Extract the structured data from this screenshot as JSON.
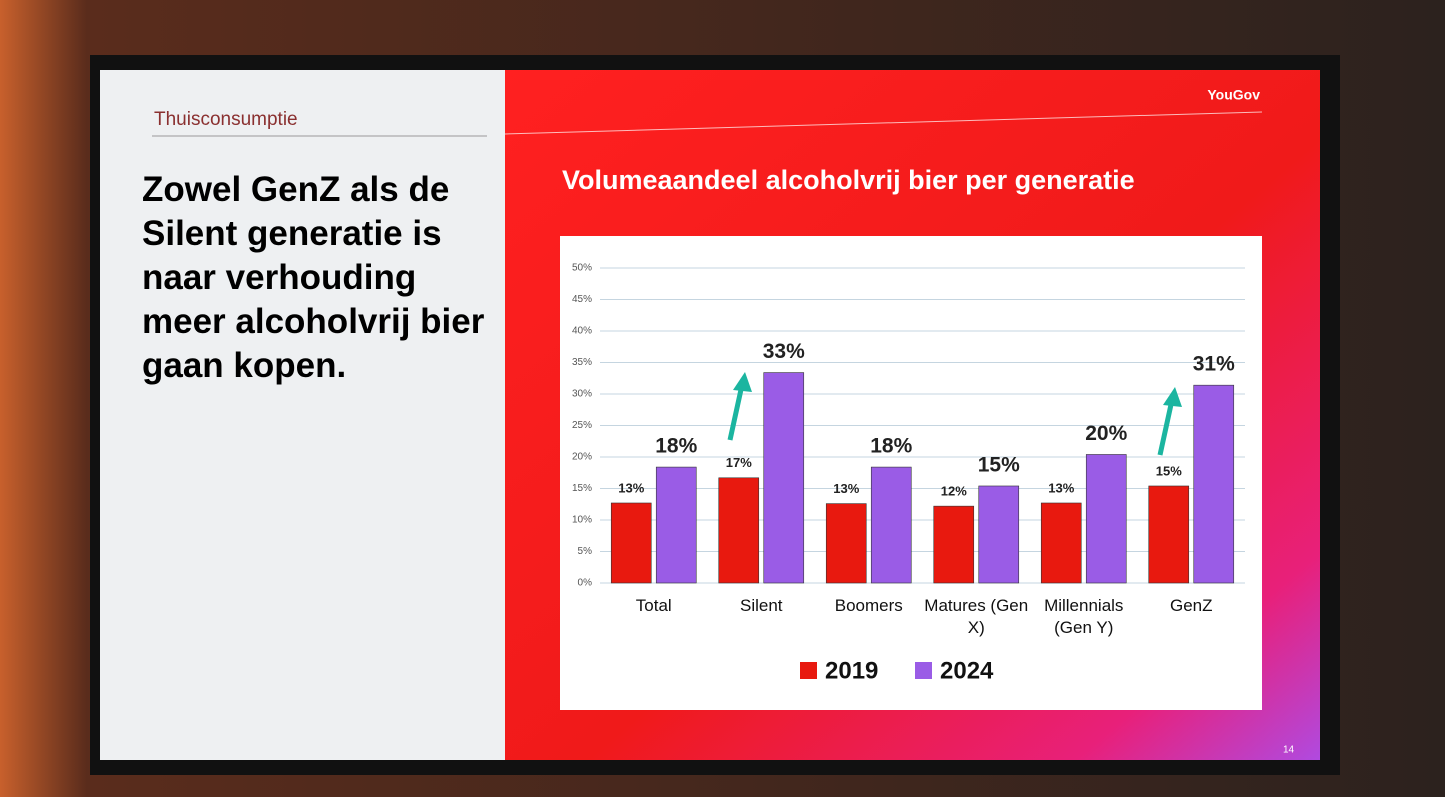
{
  "slide": {
    "section": "Thuisconsumptie",
    "headline": "Zowel GenZ als de Silent generatie is naar verhouding meer alcoholvrij bier gaan kopen.",
    "brand": "YouGov",
    "page_number": "14"
  },
  "chart_data": {
    "type": "bar",
    "title": "Volumeaandeel alcoholvrij bier per generatie",
    "categories": [
      "Total",
      "Silent",
      "Boomers",
      "Matures (Gen X)",
      "Millennials (Gen Y)",
      "GenZ"
    ],
    "series": [
      {
        "name": "2019",
        "color": "#e8190f",
        "values": [
          12.7,
          16.7,
          12.6,
          12.2,
          12.7,
          15.4
        ],
        "value_labels": [
          "13%",
          "17%",
          "13%",
          "12%",
          "13%",
          "15%"
        ]
      },
      {
        "name": "2024",
        "color": "#9a5ce6",
        "values": [
          18.4,
          33.4,
          18.4,
          15.4,
          20.4,
          31.4
        ],
        "value_labels": [
          "18%",
          "33%",
          "18%",
          "15%",
          "20%",
          "31%"
        ]
      }
    ],
    "ylim": [
      0,
      50
    ],
    "yticks": [
      {
        "value": 0,
        "label": "0%"
      },
      {
        "value": 5,
        "label": "5%"
      },
      {
        "value": 10,
        "label": "10%"
      },
      {
        "value": 15,
        "label": "15%"
      },
      {
        "value": 20,
        "label": "20%"
      },
      {
        "value": 25,
        "label": "25%"
      },
      {
        "value": 30,
        "label": "30%"
      },
      {
        "value": 35,
        "label": "35%"
      },
      {
        "value": 40,
        "label": "40%"
      },
      {
        "value": 45,
        "label": "45%"
      },
      {
        "value": 50,
        "label": "50%"
      }
    ],
    "grid": true,
    "legend": "bottom"
  }
}
